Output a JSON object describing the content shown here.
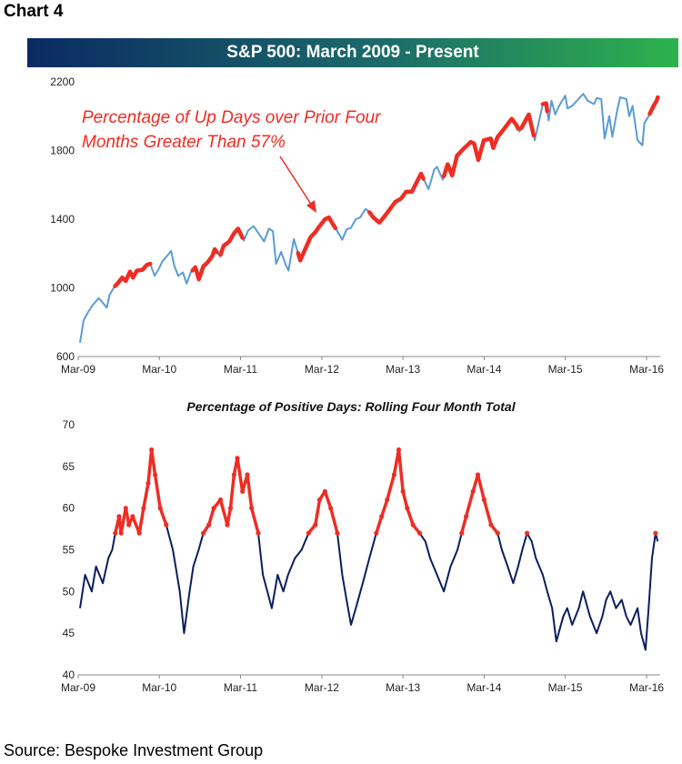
{
  "header": {
    "chart_label": "Chart 4",
    "title": "S&P 500: March 2009 - Present"
  },
  "footer": {
    "source": "Source: Bespoke Investment Group"
  },
  "colors": {
    "index_line": "#5b9bd5",
    "highlight": "#ee2d24",
    "pct_line": "#0a1f5c"
  },
  "chart_data": [
    {
      "type": "line",
      "title": "S&P 500: March 2009 - Present",
      "annotation": {
        "lines": [
          "Percentage of Up Days over Prior Four",
          "Months Greater Than 57%"
        ]
      },
      "x_tick_labels": [
        "Mar-09",
        "Mar-10",
        "Mar-11",
        "Mar-12",
        "Mar-13",
        "Mar-14",
        "Mar-15",
        "Mar-16"
      ],
      "y_tick_labels": [
        "600",
        "1000",
        "1400",
        "1800",
        "2200"
      ],
      "ylim": [
        600,
        2200
      ],
      "xlim": [
        "2009-03",
        "2016-05"
      ],
      "series": [
        {
          "x": [
            "2009-03-09",
            "2009-03-25",
            "2009-04-15",
            "2009-05-05",
            "2009-06-01",
            "2009-06-15",
            "2009-07-08",
            "2009-07-20",
            "2009-08-10",
            "2009-08-28",
            "2009-09-15",
            "2009-10-01",
            "2009-10-20",
            "2009-11-02",
            "2009-11-20",
            "2009-12-15",
            "2010-01-05",
            "2010-01-19",
            "2010-02-08",
            "2010-02-26",
            "2010-03-15",
            "2010-04-01",
            "2010-04-23",
            "2010-05-07",
            "2010-05-25",
            "2010-06-15",
            "2010-07-02",
            "2010-07-20",
            "2010-08-10",
            "2010-08-26",
            "2010-09-15",
            "2010-10-05",
            "2010-10-25",
            "2010-11-05",
            "2010-11-29",
            "2010-12-15",
            "2011-01-10",
            "2011-02-01",
            "2011-02-18",
            "2011-03-16",
            "2011-04-05",
            "2011-04-29",
            "2011-05-20",
            "2011-06-15",
            "2011-07-07",
            "2011-07-25",
            "2011-08-08",
            "2011-08-31",
            "2011-09-22",
            "2011-10-03",
            "2011-10-27",
            "2011-11-25",
            "2011-12-15",
            "2012-01-10",
            "2012-02-01",
            "2012-02-20",
            "2012-03-15",
            "2012-04-02",
            "2012-04-20",
            "2012-05-10",
            "2012-06-01",
            "2012-06-20",
            "2012-07-10",
            "2012-08-01",
            "2012-08-20",
            "2012-09-14",
            "2012-10-01",
            "2012-10-19",
            "2012-11-15",
            "2012-12-10",
            "2013-01-02",
            "2013-01-25",
            "2013-02-20",
            "2013-03-15",
            "2013-04-10",
            "2013-05-21",
            "2013-06-24",
            "2013-07-20",
            "2013-08-01",
            "2013-08-27",
            "2013-09-18",
            "2013-10-08",
            "2013-10-30",
            "2013-11-28",
            "2013-12-31",
            "2014-01-15",
            "2014-02-03",
            "2014-02-28",
            "2014-03-31",
            "2014-04-11",
            "2014-05-01",
            "2014-06-01",
            "2014-07-03",
            "2014-07-24",
            "2014-08-07",
            "2014-09-18",
            "2014-10-15",
            "2014-11-20",
            "2014-12-05",
            "2014-12-16",
            "2014-12-29",
            "2015-01-15",
            "2015-02-01",
            "2015-03-01",
            "2015-03-11",
            "2015-04-01",
            "2015-05-21",
            "2015-06-10",
            "2015-07-08",
            "2015-07-20",
            "2015-08-10",
            "2015-08-25",
            "2015-09-15",
            "2015-09-29",
            "2015-10-20",
            "2015-11-03",
            "2015-12-01",
            "2015-12-14",
            "2015-12-29",
            "2016-01-20",
            "2016-02-11",
            "2016-02-20",
            "2016-03-10",
            "2016-04-01",
            "2016-04-15",
            "2016-04-20"
          ],
          "y": [
            680,
            810,
            860,
            900,
            940,
            920,
            885,
            960,
            1005,
            1030,
            1060,
            1040,
            1095,
            1060,
            1100,
            1105,
            1135,
            1140,
            1070,
            1110,
            1155,
            1180,
            1215,
            1130,
            1070,
            1090,
            1025,
            1090,
            1120,
            1050,
            1125,
            1150,
            1185,
            1225,
            1185,
            1245,
            1270,
            1320,
            1345,
            1275,
            1335,
            1360,
            1320,
            1270,
            1345,
            1330,
            1140,
            1210,
            1130,
            1100,
            1285,
            1160,
            1220,
            1295,
            1325,
            1360,
            1400,
            1410,
            1370,
            1330,
            1280,
            1340,
            1350,
            1400,
            1410,
            1460,
            1440,
            1410,
            1380,
            1420,
            1460,
            1500,
            1520,
            1560,
            1560,
            1665,
            1575,
            1690,
            1705,
            1630,
            1720,
            1655,
            1770,
            1810,
            1850,
            1840,
            1745,
            1860,
            1870,
            1815,
            1880,
            1930,
            1985,
            1950,
            1910,
            2010,
            1860,
            2070,
            2075,
            1975,
            2090,
            2010,
            2060,
            2120,
            2045,
            2060,
            2130,
            2090,
            2070,
            2105,
            2100,
            1870,
            2000,
            1880,
            2030,
            2110,
            2100,
            2000,
            2060,
            1860,
            1830,
            1960,
            2000,
            2060,
            2090,
            2110
          ],
          "highlight_ranges": [
            [
              "2009-08-14",
              "2010-01-19"
            ],
            [
              "2010-07-28",
              "2010-11-15"
            ],
            [
              "2010-12-01",
              "2011-03-10"
            ],
            [
              "2011-11-15",
              "2012-05-01"
            ],
            [
              "2012-10-01",
              "2013-06-01"
            ],
            [
              "2013-09-01",
              "2014-08-01"
            ],
            [
              "2014-08-15",
              "2014-10-10"
            ],
            [
              "2014-11-20",
              "2014-12-10"
            ],
            [
              "2016-03-15",
              "2016-04-20"
            ]
          ]
        }
      ]
    },
    {
      "type": "line",
      "title": "Percentage of Positive Days: Rolling Four Month Total",
      "x_tick_labels": [
        "Mar-09",
        "Mar-10",
        "Mar-11",
        "Mar-12",
        "Mar-13",
        "Mar-14",
        "Mar-15",
        "Mar-16"
      ],
      "y_tick_labels": [
        "40",
        "45",
        "50",
        "55",
        "60",
        "65",
        "70"
      ],
      "ylim": [
        40,
        70
      ],
      "xlim": [
        "2009-03",
        "2016-05"
      ],
      "threshold": 57,
      "series": [
        {
          "x": [
            "2009-03-09",
            "2009-04-01",
            "2009-05-01",
            "2009-05-20",
            "2009-06-20",
            "2009-07-15",
            "2009-08-01",
            "2009-08-15",
            "2009-09-01",
            "2009-09-10",
            "2009-10-01",
            "2009-10-15",
            "2009-11-01",
            "2009-12-01",
            "2009-12-20",
            "2010-01-10",
            "2010-01-25",
            "2010-02-10",
            "2010-03-05",
            "2010-04-01",
            "2010-05-01",
            "2010-06-01",
            "2010-06-20",
            "2010-07-15",
            "2010-08-01",
            "2010-08-25",
            "2010-09-15",
            "2010-10-10",
            "2010-11-01",
            "2010-12-01",
            "2011-01-01",
            "2011-01-15",
            "2011-01-31",
            "2011-02-15",
            "2011-03-10",
            "2011-04-01",
            "2011-04-20",
            "2011-05-20",
            "2011-06-10",
            "2011-06-30",
            "2011-07-20",
            "2011-08-15",
            "2011-09-10",
            "2011-10-01",
            "2011-11-01",
            "2011-12-01",
            "2012-01-01",
            "2012-02-01",
            "2012-02-20",
            "2012-03-15",
            "2012-04-10",
            "2012-05-10",
            "2012-06-01",
            "2012-06-20",
            "2012-07-10",
            "2012-08-01",
            "2012-09-01",
            "2012-10-01",
            "2012-11-01",
            "2012-11-25",
            "2012-12-20",
            "2013-01-20",
            "2013-02-10",
            "2013-03-01",
            "2013-03-20",
            "2013-04-15",
            "2013-05-15",
            "2013-06-10",
            "2013-07-01",
            "2013-08-01",
            "2013-09-01",
            "2013-10-01",
            "2013-11-01",
            "2013-11-20",
            "2013-12-10",
            "2014-01-10",
            "2014-02-01",
            "2014-03-01",
            "2014-04-01",
            "2014-05-01",
            "2014-05-20",
            "2014-06-15",
            "2014-07-10",
            "2014-08-01",
            "2014-08-20",
            "2014-09-10",
            "2014-10-01",
            "2014-10-20",
            "2014-11-20",
            "2014-12-10",
            "2015-01-01",
            "2015-01-20",
            "2015-02-20",
            "2015-03-10",
            "2015-04-01",
            "2015-05-01",
            "2015-05-20",
            "2015-06-20",
            "2015-07-20",
            "2015-08-15",
            "2015-09-01",
            "2015-09-20",
            "2015-10-15",
            "2015-11-10",
            "2015-12-01",
            "2015-12-20",
            "2016-01-20",
            "2016-02-05",
            "2016-02-25",
            "2016-03-10",
            "2016-03-25",
            "2016-04-10",
            "2016-04-20"
          ],
          "y": [
            48,
            52,
            50,
            53,
            51,
            54,
            55,
            57,
            59,
            57,
            60,
            58,
            59,
            57,
            60,
            63,
            67,
            64,
            60,
            58,
            55,
            50,
            45,
            50,
            53,
            55,
            57,
            58,
            60,
            61,
            58,
            60,
            64,
            66,
            62,
            64,
            60,
            57,
            52,
            50,
            48,
            52,
            50,
            52,
            54,
            55,
            57,
            58,
            61,
            62,
            60,
            57,
            52,
            49,
            46,
            48,
            51,
            54,
            57,
            59,
            61,
            64,
            67,
            62,
            60,
            58,
            57,
            56,
            54,
            52,
            50,
            53,
            55,
            57,
            59,
            62,
            64,
            61,
            58,
            57,
            55,
            53,
            51,
            53,
            55,
            57,
            56,
            54,
            52,
            50,
            48,
            44,
            47,
            48,
            46,
            48,
            50,
            47,
            45,
            47,
            49,
            50,
            48,
            49,
            47,
            46,
            48,
            45,
            43,
            48,
            54,
            57,
            56
          ],
          "highlight_above": 57
        }
      ]
    }
  ]
}
